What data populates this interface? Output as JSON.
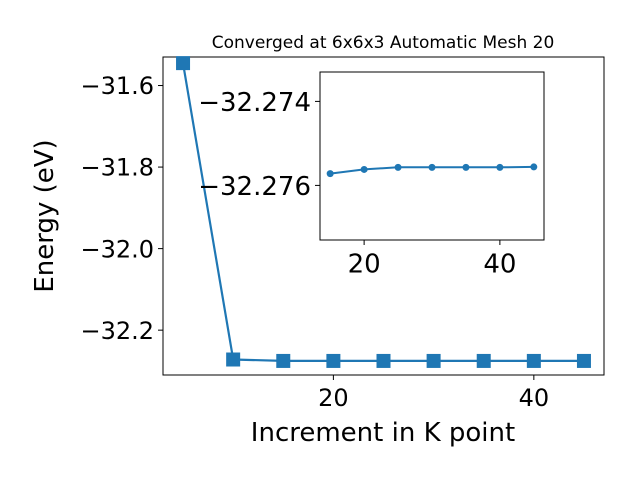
{
  "chart_data": [
    {
      "type": "line",
      "title": "Converged at 6x6x3 Automatic Mesh 20",
      "xlabel": "Increment in K point",
      "ylabel": "Energy (eV)",
      "xlim": [
        3,
        47
      ],
      "ylim": [
        -32.31,
        -31.53
      ],
      "xticks": [
        20,
        40
      ],
      "yticks": [
        -31.6,
        -31.8,
        -32.0,
        -32.2
      ],
      "ytick_labels": [
        "−31.6",
        "−31.8",
        "−32.0",
        "−32.2"
      ],
      "grid": false,
      "marker": "square",
      "color": "#1f77b4",
      "series": [
        {
          "x": [
            5,
            10,
            15,
            20,
            25,
            30,
            35,
            40,
            45
          ],
          "y": [
            -31.545,
            -32.272,
            -32.2755,
            -32.2755,
            -32.2755,
            -32.2755,
            -32.2755,
            -32.2755,
            -32.2755
          ]
        }
      ]
    },
    {
      "type": "line",
      "title": "",
      "xlabel": "",
      "ylabel": "",
      "xlim": [
        13.5,
        46.5
      ],
      "ylim": [
        -32.2773,
        -32.2733
      ],
      "xticks": [
        20,
        40
      ],
      "yticks": [
        -32.276,
        -32.274
      ],
      "ytick_labels": [
        "−32.276",
        "−32.274"
      ],
      "grid": false,
      "marker": "circle",
      "color": "#1f77b4",
      "series": [
        {
          "x": [
            15,
            20,
            25,
            30,
            35,
            40,
            45
          ],
          "y": [
            -32.27572,
            -32.27562,
            -32.27557,
            -32.27557,
            -32.27557,
            -32.27557,
            -32.27556
          ]
        }
      ]
    }
  ]
}
